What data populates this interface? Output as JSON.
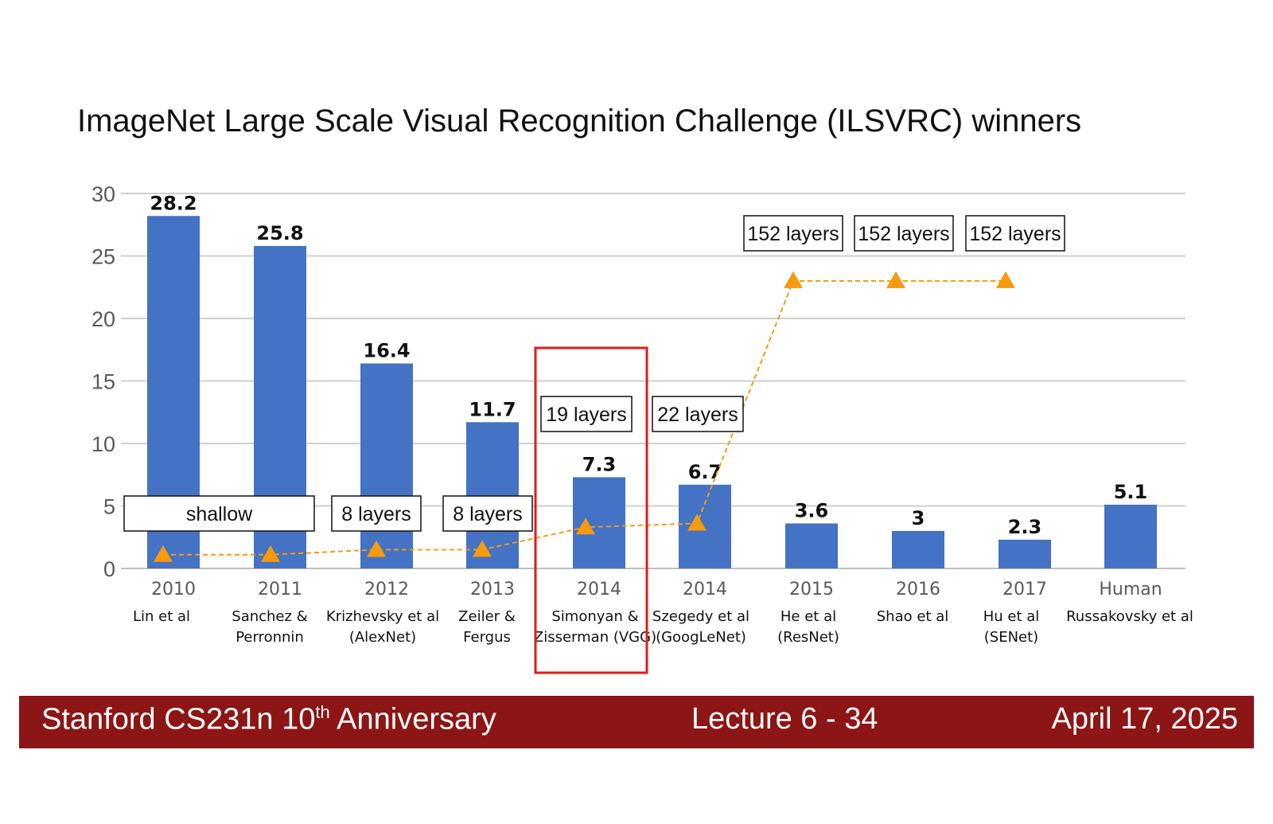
{
  "title": "ImageNet Large Scale Visual Recognition Challenge (ILSVRC) winners",
  "chart_data": {
    "type": "bar",
    "categories": [
      "2010",
      "2011",
      "2012",
      "2013",
      "2014",
      "2014",
      "2015",
      "2016",
      "2017",
      "Human"
    ],
    "authors": [
      [
        "Lin et al"
      ],
      [
        "Sanchez &",
        "Perronnin"
      ],
      [
        "Krizhevsky et al",
        "(AlexNet)"
      ],
      [
        "Zeiler &",
        "Fergus"
      ],
      [
        "Simonyan &",
        "Zisserman (VGG)"
      ],
      [
        "Szegedy et al",
        "(GoogLeNet)"
      ],
      [
        "He et al",
        "(ResNet)"
      ],
      [
        "Shao et al"
      ],
      [
        "Hu et al",
        "(SENet)"
      ],
      [
        "Russakovsky et al"
      ]
    ],
    "values": [
      28.2,
      25.8,
      16.4,
      11.7,
      7.3,
      6.7,
      3.6,
      3,
      2.3,
      5.1
    ],
    "value_labels": [
      "28.2",
      "25.8",
      "16.4",
      "11.7",
      "7.3",
      "6.7",
      "3.6",
      "3",
      "2.3",
      "5.1"
    ],
    "yticks": [
      "0",
      "5",
      "10",
      "15",
      "20",
      "25",
      "30"
    ],
    "ylim": [
      0,
      30
    ],
    "grid": true,
    "bar_color": "#4472c4",
    "depth_series": {
      "values": [
        1.1,
        1.1,
        1.5,
        1.5,
        3.3,
        3.6,
        23,
        23,
        23
      ],
      "color": "#f79a0e",
      "line_style": "dashed",
      "marker": "triangle"
    },
    "layer_labels": [
      "shallow",
      "8 layers",
      "8 layers",
      "19 layers",
      "22 layers",
      "152 layers",
      "152 layers",
      "152 layers"
    ],
    "highlight": {
      "category_index": 4,
      "color": "#e41a1a"
    }
  },
  "footer": {
    "left": "Stanford CS231n 10",
    "left_sup": "th",
    "left_end": " Anniversary",
    "middle": "Lecture 6 -   34",
    "right": "April 17, 2025"
  }
}
